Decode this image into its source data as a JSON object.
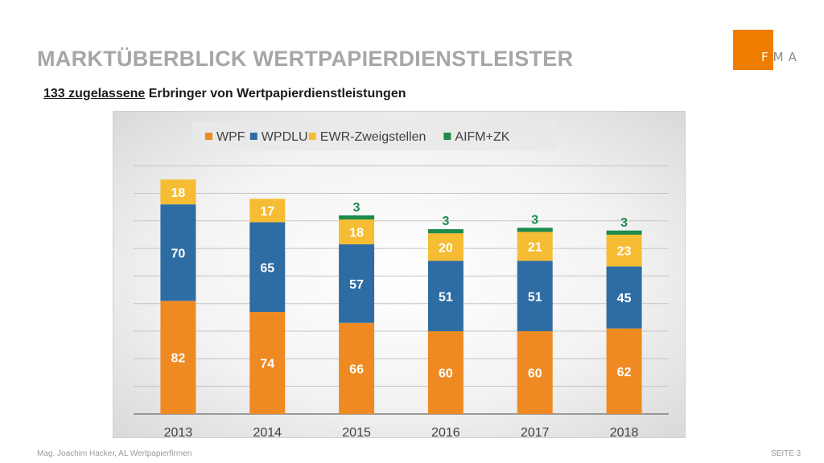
{
  "slide": {
    "title": "MARKTÜBERBLICK WERTPAPIERDIENSTLEISTER",
    "subtitle_underlined": "133 zugelassene",
    "subtitle_rest": " Erbringer von Wertpapierdienstleistungen",
    "logo_text": "FMA",
    "footer_left": "Mag. Joachim Hacker, AL Wertpapierfirmen",
    "footer_right": "SEITE 3"
  },
  "chart_data": {
    "type": "bar",
    "stacked": true,
    "categories": [
      "2013",
      "2014",
      "2015",
      "2016",
      "2017",
      "2018"
    ],
    "series": [
      {
        "name": "WPF",
        "color": "#ef8a22",
        "values": [
          82,
          74,
          66,
          60,
          60,
          62
        ]
      },
      {
        "name": "WPDLU",
        "color": "#2e6da4",
        "values": [
          70,
          65,
          57,
          51,
          51,
          45
        ]
      },
      {
        "name": "EWR-Zweigstellen",
        "color": "#f6bd34",
        "values": [
          18,
          17,
          18,
          20,
          21,
          23
        ]
      },
      {
        "name": "AIFM+ZK",
        "color": "#1d8a4e",
        "values": [
          null,
          null,
          3,
          3,
          3,
          3
        ]
      }
    ],
    "ylim": [
      0,
      190
    ],
    "grid": true,
    "legend": "top",
    "xlabel": "",
    "ylabel": ""
  }
}
